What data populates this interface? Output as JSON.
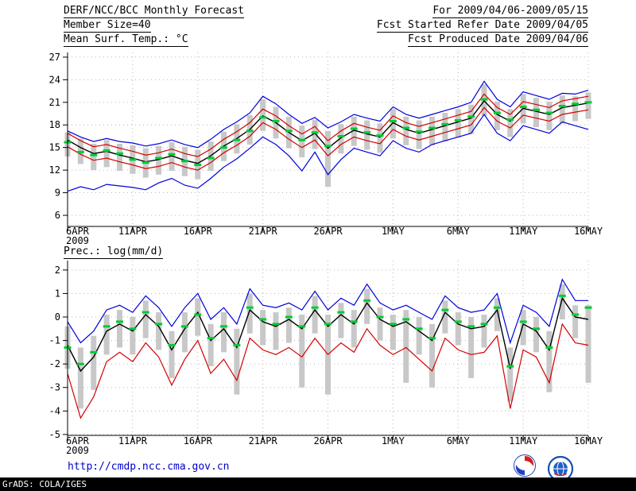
{
  "header": {
    "title": "DERF/NCC/BCC Monthly Forecast",
    "period": "For 2009/04/06-2009/05/15",
    "member_size": "Member Size=40",
    "refer_date": "Fcst Started Refer Date 2009/04/05",
    "produced_date": "Fcst Produced Date 2009/04/06"
  },
  "footer": {
    "url": "http://cmdp.ncc.cma.gov.cn",
    "credit": "GrADS: COLA/IGES",
    "bcc_label": "BCC"
  },
  "colors": {
    "ensemble_max_min": "#0000dd",
    "quartile": "#d40000",
    "mean": "#000000",
    "observation": "#00cc33",
    "spread_bar": "#c8c8c8",
    "grid": "#b8b8b8",
    "url_blue": "#0000cc"
  },
  "chart_data": [
    {
      "type": "line",
      "title": "Mean Surf. Temp.: °C",
      "x_year_label": "2009",
      "x_tick_labels": [
        "6APR",
        "11APR",
        "16APR",
        "21APR",
        "26APR",
        "1MAY",
        "6MAY",
        "11MAY",
        "16MAY"
      ],
      "y_ticks": [
        6,
        9,
        12,
        15,
        18,
        21,
        24,
        27
      ],
      "ylim": [
        6,
        27
      ],
      "grid_color": "#b8b8b8",
      "series": [
        {
          "name": "ensemble-max",
          "color": "#0000dd",
          "width": 1.2,
          "values": [
            17.2,
            16.4,
            15.8,
            16.2,
            15.8,
            15.6,
            15.2,
            15.5,
            16.0,
            15.4,
            15.0,
            16.1,
            17.4,
            18.4,
            19.6,
            21.8,
            20.8,
            19.4,
            18.2,
            19.0,
            17.6,
            18.4,
            19.4,
            18.9,
            18.5,
            20.4,
            19.4,
            18.9,
            19.4,
            19.9,
            20.4,
            21.0,
            23.8,
            21.4,
            20.4,
            22.4,
            21.9,
            21.4,
            22.2,
            22.1,
            22.6
          ]
        },
        {
          "name": "upper-quartile",
          "color": "#d40000",
          "width": 1.2,
          "values": [
            16.9,
            15.9,
            15.1,
            15.4,
            14.9,
            14.5,
            14.0,
            14.3,
            14.8,
            14.2,
            13.8,
            14.8,
            16.1,
            17.1,
            18.3,
            20.1,
            19.2,
            17.9,
            16.8,
            17.8,
            15.9,
            17.2,
            18.2,
            17.7,
            17.3,
            19.2,
            18.3,
            17.8,
            18.3,
            18.8,
            19.3,
            19.8,
            22.1,
            20.3,
            19.4,
            21.1,
            20.7,
            20.3,
            21.2,
            21.5,
            21.8
          ]
        },
        {
          "name": "lower-quartile",
          "color": "#d40000",
          "width": 1.2,
          "values": [
            15.1,
            14.1,
            13.3,
            13.6,
            13.1,
            12.7,
            12.2,
            12.5,
            13.0,
            12.4,
            12.0,
            13.0,
            14.3,
            15.3,
            16.5,
            18.3,
            17.4,
            16.1,
            15.0,
            16.0,
            13.9,
            15.4,
            16.4,
            15.9,
            15.5,
            17.4,
            16.5,
            16.0,
            16.5,
            17.0,
            17.5,
            18.0,
            20.3,
            18.5,
            17.6,
            19.3,
            18.9,
            18.5,
            19.4,
            19.7,
            20.0
          ]
        },
        {
          "name": "ensemble-min",
          "color": "#0000dd",
          "width": 1.2,
          "values": [
            9.2,
            9.8,
            9.4,
            10.1,
            9.9,
            9.7,
            9.4,
            10.3,
            10.9,
            10.0,
            9.6,
            10.9,
            12.4,
            13.5,
            14.9,
            16.4,
            15.4,
            13.9,
            11.9,
            14.4,
            11.4,
            13.4,
            14.9,
            14.4,
            13.9,
            15.9,
            14.9,
            14.4,
            15.4,
            15.9,
            16.4,
            16.9,
            19.4,
            16.9,
            15.9,
            17.9,
            17.4,
            16.9,
            18.4,
            17.9,
            17.4
          ]
        },
        {
          "name": "ensemble-mean",
          "color": "#000000",
          "width": 1.4,
          "values": [
            16.0,
            15.0,
            14.2,
            14.5,
            14.0,
            13.6,
            13.1,
            13.4,
            13.9,
            13.3,
            12.9,
            13.9,
            15.2,
            16.2,
            17.4,
            19.2,
            18.3,
            17.0,
            15.9,
            16.9,
            14.9,
            16.3,
            17.3,
            16.8,
            16.4,
            18.3,
            17.4,
            16.9,
            17.4,
            17.9,
            18.4,
            18.9,
            21.2,
            19.4,
            18.5,
            20.2,
            19.8,
            19.4,
            20.3,
            20.6,
            20.9
          ]
        }
      ],
      "bars": {
        "name": "ensemble-spread",
        "color": "#c8c8c8",
        "high": [
          17.0,
          16.2,
          15.5,
          16.0,
          15.5,
          15.3,
          14.9,
          15.2,
          15.7,
          15.1,
          14.7,
          15.8,
          17.1,
          18.1,
          19.3,
          21.4,
          20.4,
          19.1,
          17.9,
          18.7,
          17.2,
          18.1,
          19.1,
          18.6,
          18.2,
          20.1,
          19.1,
          18.6,
          19.1,
          19.6,
          20.1,
          20.7,
          23.4,
          21.1,
          20.1,
          22.1,
          21.6,
          21.1,
          21.9,
          21.8,
          22.3
        ],
        "low": [
          13.8,
          12.8,
          12.0,
          12.4,
          11.9,
          11.5,
          11.0,
          11.4,
          11.9,
          11.2,
          10.8,
          11.9,
          13.2,
          14.2,
          15.4,
          17.2,
          16.2,
          14.9,
          13.7,
          14.8,
          9.8,
          14.2,
          15.2,
          14.7,
          14.3,
          16.2,
          15.3,
          14.8,
          15.3,
          15.8,
          16.3,
          16.8,
          19.2,
          17.3,
          16.4,
          18.2,
          17.7,
          17.3,
          18.2,
          18.5,
          18.8
        ]
      },
      "obs": {
        "name": "observation",
        "color": "#00cc33",
        "values": [
          15.7,
          14.4,
          14.0,
          14.6,
          14.2,
          13.4,
          13.0,
          13.6,
          14.1,
          13.2,
          12.7,
          13.6,
          15.0,
          16.0,
          17.2,
          19.0,
          18.5,
          17.2,
          16.0,
          17.0,
          15.2,
          16.5,
          17.5,
          17.0,
          16.6,
          18.5,
          17.6,
          17.1,
          17.6,
          18.1,
          18.6,
          19.1,
          21.4,
          19.6,
          18.7,
          20.4,
          20.0,
          19.6,
          20.5,
          20.8,
          21.0
        ]
      }
    },
    {
      "type": "line",
      "title": "Prec.: log(mm/d)",
      "x_year_label": "2009",
      "x_tick_labels": [
        "6APR",
        "11APR",
        "16APR",
        "21APR",
        "26APR",
        "1MAY",
        "6MAY",
        "11MAY",
        "16MAY"
      ],
      "y_ticks": [
        -5,
        -4,
        -3,
        -2,
        -1,
        0,
        1,
        2
      ],
      "ylim": [
        -5,
        2
      ],
      "grid_color": "#b8b8b8",
      "series": [
        {
          "name": "ensemble-max",
          "color": "#0000dd",
          "width": 1.2,
          "values": [
            -0.2,
            -1.1,
            -0.6,
            0.3,
            0.5,
            0.2,
            0.9,
            0.4,
            -0.4,
            0.4,
            1.0,
            -0.1,
            0.4,
            -0.3,
            1.2,
            0.5,
            0.4,
            0.6,
            0.3,
            1.1,
            0.3,
            0.8,
            0.5,
            1.4,
            0.6,
            0.3,
            0.5,
            0.2,
            -0.1,
            0.9,
            0.4,
            0.2,
            0.3,
            1.0,
            -1.1,
            0.5,
            0.2,
            -0.4,
            1.6,
            0.7,
            0.7
          ]
        },
        {
          "name": "ensemble-min",
          "color": "#d40000",
          "width": 1.2,
          "values": [
            -2.4,
            -4.3,
            -3.4,
            -1.9,
            -1.5,
            -1.9,
            -1.1,
            -1.7,
            -2.9,
            -1.8,
            -1.0,
            -2.4,
            -1.8,
            -2.7,
            -0.9,
            -1.4,
            -1.6,
            -1.3,
            -1.7,
            -0.9,
            -1.6,
            -1.1,
            -1.5,
            -0.5,
            -1.2,
            -1.6,
            -1.3,
            -1.8,
            -2.3,
            -0.9,
            -1.4,
            -1.6,
            -1.5,
            -0.8,
            -3.9,
            -1.4,
            -1.7,
            -2.8,
            -0.3,
            -1.1,
            -1.2
          ]
        },
        {
          "name": "ensemble-mean",
          "color": "#000000",
          "width": 1.4,
          "values": [
            -1.2,
            -2.3,
            -1.7,
            -0.6,
            -0.3,
            -0.6,
            0.1,
            -0.4,
            -1.4,
            -0.5,
            0.2,
            -1.0,
            -0.5,
            -1.3,
            0.3,
            -0.2,
            -0.4,
            -0.1,
            -0.5,
            0.3,
            -0.4,
            0.1,
            -0.3,
            0.6,
            -0.1,
            -0.4,
            -0.2,
            -0.6,
            -1.0,
            0.2,
            -0.3,
            -0.5,
            -0.4,
            0.3,
            -2.2,
            -0.3,
            -0.6,
            -1.4,
            0.8,
            0.0,
            -0.1
          ]
        }
      ],
      "bars": {
        "name": "ensemble-spread",
        "color": "#c8c8c8",
        "high": [
          -0.4,
          -1.3,
          -0.8,
          0.1,
          0.3,
          0.0,
          0.7,
          0.2,
          -0.6,
          0.2,
          0.8,
          -0.3,
          0.2,
          -0.5,
          1.0,
          0.3,
          0.2,
          0.4,
          0.1,
          0.9,
          0.1,
          0.6,
          0.3,
          1.2,
          0.4,
          0.1,
          0.3,
          0.0,
          -0.3,
          0.7,
          0.2,
          0.0,
          0.1,
          0.8,
          -1.3,
          0.3,
          0.0,
          -0.6,
          1.4,
          0.5,
          0.5
        ],
        "low": [
          -2.2,
          -3.9,
          -3.1,
          -1.6,
          -1.3,
          -1.6,
          -0.9,
          -1.4,
          -2.6,
          -1.5,
          -0.8,
          -2.1,
          -1.5,
          -3.3,
          -0.7,
          -1.2,
          -1.4,
          -1.1,
          -3.0,
          -0.7,
          -3.3,
          -0.9,
          -1.3,
          -0.3,
          -1.0,
          -1.4,
          -2.8,
          -1.6,
          -3.0,
          -0.7,
          -1.2,
          -2.6,
          -1.3,
          -0.6,
          -3.6,
          -1.2,
          -1.5,
          -3.2,
          -0.1,
          -0.9,
          -2.8
        ]
      },
      "obs": {
        "name": "observation",
        "color": "#00cc33",
        "values": [
          -1.3,
          -2.0,
          -1.5,
          -0.4,
          -0.2,
          -0.5,
          0.2,
          -0.3,
          -1.2,
          -0.4,
          0.1,
          -0.9,
          -0.4,
          -1.2,
          0.4,
          -0.1,
          -0.3,
          0.0,
          -0.4,
          0.4,
          -0.3,
          0.2,
          -0.2,
          0.7,
          0.0,
          -0.3,
          -0.1,
          -0.5,
          -0.9,
          0.3,
          -0.2,
          -0.4,
          -0.3,
          0.4,
          -2.1,
          -0.2,
          -0.5,
          -1.3,
          0.9,
          0.1,
          0.4
        ]
      }
    }
  ]
}
